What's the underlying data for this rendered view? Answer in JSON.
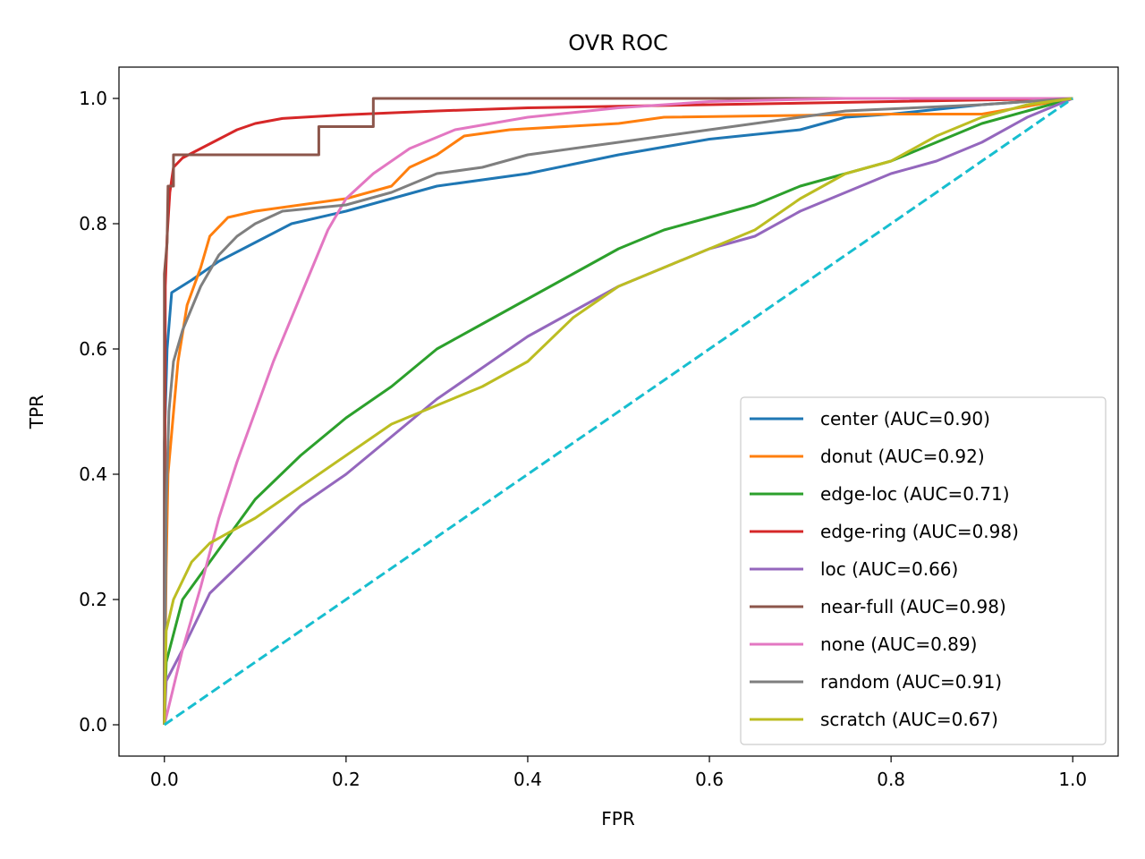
{
  "chart_data": {
    "type": "line",
    "title": "OVR ROC",
    "xlabel": "FPR",
    "ylabel": "TPR",
    "xlim": [
      -0.05,
      1.05
    ],
    "ylim": [
      -0.05,
      1.05
    ],
    "xticks": [
      0.0,
      0.2,
      0.4,
      0.6,
      0.8,
      1.0
    ],
    "yticks": [
      0.0,
      0.2,
      0.4,
      0.6,
      0.8,
      1.0
    ],
    "xtick_labels": [
      "0.0",
      "0.2",
      "0.4",
      "0.6",
      "0.8",
      "1.0"
    ],
    "ytick_labels": [
      "0.0",
      "0.2",
      "0.4",
      "0.6",
      "0.8",
      "1.0"
    ],
    "grid": false,
    "legend_position": "bottom-right",
    "series": [
      {
        "name": "center (AUC=0.90)",
        "color": "#1f77b4",
        "points": [
          [
            0,
            0
          ],
          [
            0,
            0.45
          ],
          [
            0.003,
            0.6
          ],
          [
            0.008,
            0.69
          ],
          [
            0.03,
            0.71
          ],
          [
            0.06,
            0.74
          ],
          [
            0.1,
            0.77
          ],
          [
            0.14,
            0.8
          ],
          [
            0.2,
            0.82
          ],
          [
            0.25,
            0.84
          ],
          [
            0.3,
            0.86
          ],
          [
            0.4,
            0.88
          ],
          [
            0.5,
            0.91
          ],
          [
            0.6,
            0.935
          ],
          [
            0.7,
            0.95
          ],
          [
            0.75,
            0.97
          ],
          [
            0.8,
            0.975
          ],
          [
            0.9,
            0.99
          ],
          [
            1.0,
            1.0
          ]
        ]
      },
      {
        "name": "donut (AUC=0.92)",
        "color": "#ff7f0e",
        "points": [
          [
            0,
            0
          ],
          [
            0.002,
            0.25
          ],
          [
            0.004,
            0.4
          ],
          [
            0.015,
            0.58
          ],
          [
            0.025,
            0.67
          ],
          [
            0.04,
            0.73
          ],
          [
            0.05,
            0.78
          ],
          [
            0.07,
            0.81
          ],
          [
            0.1,
            0.82
          ],
          [
            0.2,
            0.84
          ],
          [
            0.25,
            0.86
          ],
          [
            0.27,
            0.89
          ],
          [
            0.3,
            0.91
          ],
          [
            0.33,
            0.94
          ],
          [
            0.38,
            0.95
          ],
          [
            0.5,
            0.96
          ],
          [
            0.55,
            0.97
          ],
          [
            0.8,
            0.975
          ],
          [
            0.9,
            0.975
          ],
          [
            1.0,
            1.0
          ]
        ]
      },
      {
        "name": "edge-loc (AUC=0.71)",
        "color": "#2ca02c",
        "points": [
          [
            0,
            0
          ],
          [
            0.002,
            0.1
          ],
          [
            0.02,
            0.2
          ],
          [
            0.05,
            0.26
          ],
          [
            0.1,
            0.36
          ],
          [
            0.15,
            0.43
          ],
          [
            0.2,
            0.49
          ],
          [
            0.25,
            0.54
          ],
          [
            0.3,
            0.6
          ],
          [
            0.35,
            0.64
          ],
          [
            0.4,
            0.68
          ],
          [
            0.45,
            0.72
          ],
          [
            0.5,
            0.76
          ],
          [
            0.55,
            0.79
          ],
          [
            0.6,
            0.81
          ],
          [
            0.65,
            0.83
          ],
          [
            0.7,
            0.86
          ],
          [
            0.75,
            0.88
          ],
          [
            0.8,
            0.9
          ],
          [
            0.85,
            0.93
          ],
          [
            0.9,
            0.96
          ],
          [
            0.95,
            0.98
          ],
          [
            1.0,
            1.0
          ]
        ]
      },
      {
        "name": "edge-ring (AUC=0.98)",
        "color": "#d62728",
        "points": [
          [
            0,
            0
          ],
          [
            0.001,
            0.7
          ],
          [
            0.003,
            0.78
          ],
          [
            0.006,
            0.85
          ],
          [
            0.01,
            0.89
          ],
          [
            0.02,
            0.905
          ],
          [
            0.04,
            0.92
          ],
          [
            0.06,
            0.935
          ],
          [
            0.08,
            0.95
          ],
          [
            0.1,
            0.96
          ],
          [
            0.13,
            0.968
          ],
          [
            0.2,
            0.974
          ],
          [
            0.3,
            0.98
          ],
          [
            0.4,
            0.985
          ],
          [
            0.6,
            0.99
          ],
          [
            0.8,
            0.995
          ],
          [
            1.0,
            1.0
          ]
        ]
      },
      {
        "name": "loc (AUC=0.66)",
        "color": "#9467bd",
        "points": [
          [
            0,
            0
          ],
          [
            0.002,
            0.07
          ],
          [
            0.02,
            0.12
          ],
          [
            0.05,
            0.21
          ],
          [
            0.1,
            0.28
          ],
          [
            0.15,
            0.35
          ],
          [
            0.2,
            0.4
          ],
          [
            0.25,
            0.46
          ],
          [
            0.3,
            0.52
          ],
          [
            0.35,
            0.57
          ],
          [
            0.4,
            0.62
          ],
          [
            0.45,
            0.66
          ],
          [
            0.5,
            0.7
          ],
          [
            0.55,
            0.73
          ],
          [
            0.6,
            0.76
          ],
          [
            0.65,
            0.78
          ],
          [
            0.7,
            0.82
          ],
          [
            0.75,
            0.85
          ],
          [
            0.8,
            0.88
          ],
          [
            0.85,
            0.9
          ],
          [
            0.9,
            0.93
          ],
          [
            0.95,
            0.97
          ],
          [
            1.0,
            1.0
          ]
        ]
      },
      {
        "name": "near-full (AUC=0.98)",
        "color": "#8c564b",
        "points": [
          [
            0,
            0
          ],
          [
            0,
            0.72
          ],
          [
            0.003,
            0.77
          ],
          [
            0.004,
            0.86
          ],
          [
            0.01,
            0.86
          ],
          [
            0.01,
            0.91
          ],
          [
            0.17,
            0.91
          ],
          [
            0.17,
            0.955
          ],
          [
            0.23,
            0.955
          ],
          [
            0.23,
            1.0
          ],
          [
            1.0,
            1.0
          ]
        ]
      },
      {
        "name": "none (AUC=0.89)",
        "color": "#e377c2",
        "points": [
          [
            0,
            0
          ],
          [
            0.02,
            0.12
          ],
          [
            0.04,
            0.22
          ],
          [
            0.06,
            0.33
          ],
          [
            0.08,
            0.42
          ],
          [
            0.1,
            0.5
          ],
          [
            0.12,
            0.58
          ],
          [
            0.14,
            0.65
          ],
          [
            0.16,
            0.72
          ],
          [
            0.18,
            0.79
          ],
          [
            0.2,
            0.84
          ],
          [
            0.23,
            0.88
          ],
          [
            0.27,
            0.92
          ],
          [
            0.32,
            0.95
          ],
          [
            0.4,
            0.97
          ],
          [
            0.5,
            0.985
          ],
          [
            0.6,
            0.995
          ],
          [
            0.75,
            1.0
          ],
          [
            1.0,
            1.0
          ]
        ]
      },
      {
        "name": "random (AUC=0.91)",
        "color": "#7f7f7f",
        "points": [
          [
            0,
            0
          ],
          [
            0.002,
            0.35
          ],
          [
            0.005,
            0.5
          ],
          [
            0.01,
            0.58
          ],
          [
            0.02,
            0.63
          ],
          [
            0.04,
            0.7
          ],
          [
            0.06,
            0.75
          ],
          [
            0.08,
            0.78
          ],
          [
            0.1,
            0.8
          ],
          [
            0.13,
            0.82
          ],
          [
            0.2,
            0.83
          ],
          [
            0.25,
            0.85
          ],
          [
            0.3,
            0.88
          ],
          [
            0.35,
            0.89
          ],
          [
            0.4,
            0.91
          ],
          [
            0.5,
            0.93
          ],
          [
            0.6,
            0.95
          ],
          [
            0.7,
            0.97
          ],
          [
            0.75,
            0.98
          ],
          [
            0.9,
            0.99
          ],
          [
            1.0,
            1.0
          ]
        ]
      },
      {
        "name": "scratch (AUC=0.67)",
        "color": "#bcbd22",
        "points": [
          [
            0,
            0
          ],
          [
            0.002,
            0.15
          ],
          [
            0.01,
            0.2
          ],
          [
            0.03,
            0.26
          ],
          [
            0.05,
            0.29
          ],
          [
            0.1,
            0.33
          ],
          [
            0.15,
            0.38
          ],
          [
            0.2,
            0.43
          ],
          [
            0.25,
            0.48
          ],
          [
            0.3,
            0.51
          ],
          [
            0.35,
            0.54
          ],
          [
            0.4,
            0.58
          ],
          [
            0.45,
            0.65
          ],
          [
            0.5,
            0.7
          ],
          [
            0.55,
            0.73
          ],
          [
            0.6,
            0.76
          ],
          [
            0.65,
            0.79
          ],
          [
            0.7,
            0.84
          ],
          [
            0.75,
            0.88
          ],
          [
            0.8,
            0.9
          ],
          [
            0.85,
            0.94
          ],
          [
            0.9,
            0.97
          ],
          [
            0.95,
            0.99
          ],
          [
            1.0,
            1.0
          ]
        ]
      },
      {
        "name": "",
        "color": "#17becf",
        "dashed": true,
        "points": [
          [
            0,
            0
          ],
          [
            1,
            1
          ]
        ]
      }
    ]
  }
}
